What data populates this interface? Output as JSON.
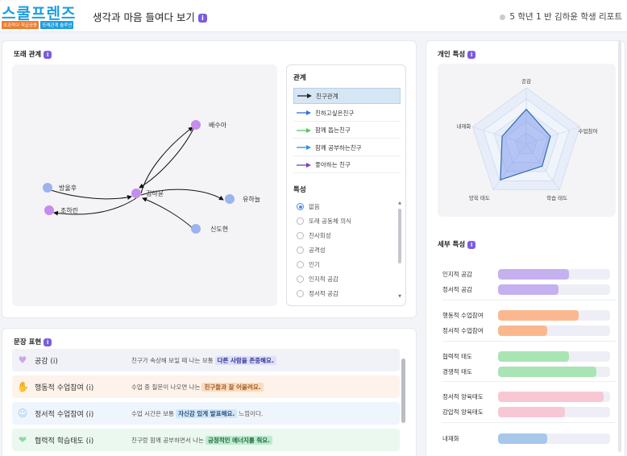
{
  "header": {
    "logo_text": "스쿨프렌즈",
    "logo_tag_1": "초과학이 학급공동",
    "logo_tag_2": "또래관계 솔루션",
    "page_title": "생각과 마음 들여다 보기",
    "info_label": "i",
    "student": "5 학년 1 반 김하윤 학생 리포트"
  },
  "peer": {
    "title": "또래 관계",
    "nodes": [
      {
        "id": "kim",
        "label": "김하윤",
        "color": "#c58cec"
      },
      {
        "id": "bae",
        "label": "배수아",
        "color": "#c58cec"
      },
      {
        "id": "bang",
        "label": "방울후",
        "color": "#9cb3ee"
      },
      {
        "id": "cho",
        "label": "조하린",
        "color": "#c58cec"
      },
      {
        "id": "yu",
        "label": "유하늘",
        "color": "#9cb3ee"
      },
      {
        "id": "shin",
        "label": "신도현",
        "color": "#9cb3ee"
      }
    ],
    "relation_title": "관계",
    "relations": [
      {
        "label": "친구관계",
        "color": "#222222"
      },
      {
        "label": "친하고싶은친구",
        "color": "#3b6fd6"
      },
      {
        "label": "함께 돕는친구",
        "color": "#5cc26a"
      },
      {
        "label": "함께 공부하는친구",
        "color": "#2f8fe6"
      },
      {
        "label": "좋아하는 친구",
        "color": "#7a3fc4"
      }
    ],
    "trait_title": "특성",
    "traits": [
      "없음",
      "또래 공동체 의식",
      "친사회성",
      "공격성",
      "인기",
      "인지적 공감",
      "정서적 공감"
    ]
  },
  "sentences": {
    "title": "문장 표현",
    "rows": [
      {
        "label": "공감 (i)",
        "before": "친구가 속상해 보일 때 나는 보통",
        "highlight": "다른 사람을 존중해요.",
        "after": "",
        "bg": "#f1f2f8",
        "hl_bg": "#dde0f6",
        "hl_color": "#333399",
        "icon": "heart-icon",
        "icon_color": "#c9a6ec"
      },
      {
        "label": "행동적 수업참여 (i)",
        "before": "수업 중 질문이 나오면 나는",
        "highlight": "친구들과 잘 어울려요.",
        "after": "",
        "bg": "#fdf3ea",
        "hl_bg": "#fbdcc0",
        "hl_color": "#a05a20",
        "icon": "hand-icon",
        "icon_color": "#f0b07c"
      },
      {
        "label": "정서적 수업참여 (i)",
        "before": "수업 시간은 보통",
        "highlight": "자신감 있게 발표해요.",
        "after": "느낌이다.",
        "bg": "#eef5fc",
        "hl_bg": "#d4e6f8",
        "hl_color": "#24507e",
        "icon": "smile-icon",
        "icon_color": "#9cc6ee"
      },
      {
        "label": "협력적 학습태도 (i)",
        "before": "친구랑 함께 공부하면서 나는",
        "highlight": "긍정적인 에너지를 줘요.",
        "after": "",
        "bg": "#eaf8ef",
        "hl_bg": "#bfead0",
        "hl_color": "#1c6b3c",
        "icon": "hands-icon",
        "icon_color": "#8fd6a8"
      }
    ]
  },
  "traits_card": {
    "title": "개인 특성",
    "radar_axes": [
      "공감",
      "수업참여",
      "학습 태도",
      "양육 태도",
      "내재화"
    ],
    "radar_values": [
      0.62,
      0.45,
      0.48,
      0.78,
      0.45
    ],
    "detail_title": "세부 특성",
    "details": [
      {
        "label": "인지적 공감",
        "value": 0.63,
        "color": "#c5b0f0"
      },
      {
        "label": "정서적 공감",
        "value": 0.54,
        "color": "#c5b0f0"
      },
      {
        "label": "행동적 수업참여",
        "value": 0.72,
        "color": "#fbb88e"
      },
      {
        "label": "정서적 수업참여",
        "value": 0.44,
        "color": "#fbb88e"
      },
      {
        "label": "협력적 태도",
        "value": 0.63,
        "color": "#a9e4b4"
      },
      {
        "label": "경쟁적 태도",
        "value": 0.88,
        "color": "#a9e4b4"
      },
      {
        "label": "정서적 양육태도",
        "value": 0.94,
        "color": "#f7c8d4"
      },
      {
        "label": "강압적 양육태도",
        "value": 0.6,
        "color": "#f7c8d4"
      },
      {
        "label": "내재화",
        "value": 0.44,
        "color": "#a8c8ea"
      }
    ]
  }
}
